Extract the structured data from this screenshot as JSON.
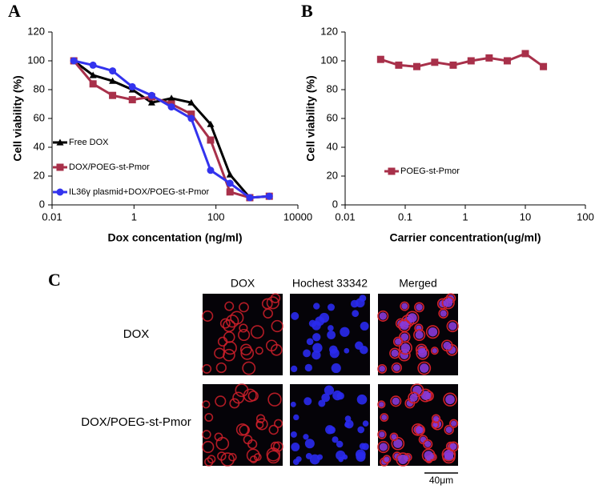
{
  "panels": [
    "A",
    "B",
    "C"
  ],
  "chart_data": [
    {
      "type": "line",
      "xlabel": "Dox concentation (ng/ml)",
      "ylabel": "Cell viability (%)",
      "log_x": true,
      "xlim": [
        0.01,
        10000
      ],
      "xticks": [
        0.01,
        1,
        100,
        10000
      ],
      "ylim": [
        0,
        120
      ],
      "yticks": [
        0,
        20,
        40,
        60,
        80,
        100,
        120
      ],
      "grid": false,
      "legend": "lower left",
      "x": [
        0.034,
        0.1,
        0.3,
        0.91,
        2.7,
        8.2,
        25,
        74,
        220,
        670,
        2000
      ],
      "series": [
        {
          "name": "Free DOX",
          "color": "#000000",
          "marker": "triangle",
          "values": [
            100,
            90,
            86,
            80,
            71,
            74,
            71,
            56,
            21,
            5,
            6
          ]
        },
        {
          "name": "DOX/POEG-st-Pmor",
          "color": "#a8304a",
          "marker": "square",
          "values": [
            100,
            84,
            76,
            73,
            75,
            70,
            63,
            45,
            9,
            5,
            6
          ]
        },
        {
          "name": "IL36γ plasmid+DOX/POEG-st-Pmor",
          "color": "#3333ee",
          "marker": "circle",
          "values": [
            100,
            97,
            93,
            82,
            76,
            68,
            60,
            24,
            15,
            5,
            6
          ]
        }
      ]
    },
    {
      "type": "line",
      "xlabel": "Carrier concentration(ug/ml)",
      "ylabel": "Cell viability (%)",
      "log_x": true,
      "xlim": [
        0.01,
        100
      ],
      "xticks": [
        0.01,
        0.1,
        1,
        10,
        100
      ],
      "ylim": [
        0,
        120
      ],
      "yticks": [
        0,
        20,
        40,
        60,
        80,
        100,
        120
      ],
      "grid": false,
      "legend": "center left",
      "x": [
        0.039,
        0.078,
        0.156,
        0.31,
        0.63,
        1.25,
        2.5,
        5,
        10,
        20
      ],
      "series": [
        {
          "name": "POEG-st-Pmor",
          "color": "#a8304a",
          "marker": "square",
          "values": [
            101,
            97,
            96,
            99,
            97,
            100,
            102,
            100,
            105,
            96
          ]
        }
      ]
    }
  ],
  "microscopy": {
    "columns": [
      "DOX",
      "Hochest 33342",
      "Merged"
    ],
    "rows": [
      "DOX",
      "DOX/POEG-st-Pmor"
    ],
    "scale_bar": "40μm"
  }
}
